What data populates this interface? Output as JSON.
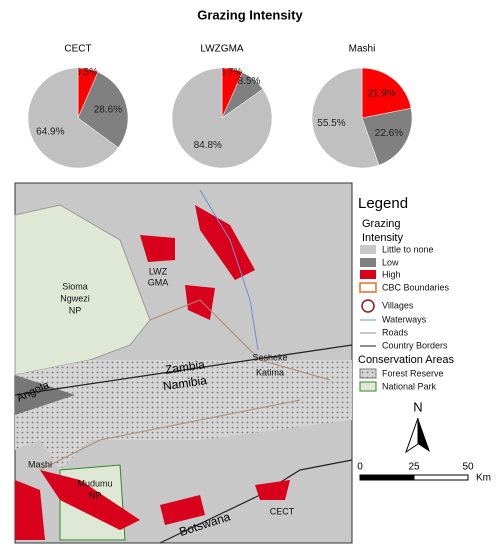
{
  "title": "Grazing Intensity",
  "chart_data": [
    {
      "type": "pie",
      "title": "CECT",
      "values": [
        6.5,
        28.6,
        64.9
      ],
      "value_labels": [
        "6.5%",
        "28.6%",
        "64.9%"
      ],
      "colors": [
        "#ff0000",
        "#808080",
        "#c0c0c0"
      ]
    },
    {
      "type": "pie",
      "title": "LWZGMA",
      "values": [
        6.7,
        8.5,
        84.8
      ],
      "value_labels": [
        "6.7%",
        "8.5%",
        "84.8%"
      ],
      "colors": [
        "#ff0000",
        "#808080",
        "#c0c0c0"
      ]
    },
    {
      "type": "pie",
      "title": "Mashi",
      "values": [
        21.9,
        22.6,
        55.5
      ],
      "value_labels": [
        "21.9%",
        "22.6%",
        "55.5%"
      ],
      "colors": [
        "#ff0000",
        "#808080",
        "#c0c0c0"
      ]
    }
  ],
  "map": {
    "labels": [
      "Sioma",
      "Ngwezi",
      "NP",
      "LWZ",
      "GMA",
      "Sesheke",
      "Katima",
      "Zambia",
      "Namibia",
      "Angola",
      "Mashi",
      "Mudumu",
      "NP",
      "Botswana",
      "CECT"
    ],
    "legend": {
      "title": "Legend",
      "grazing": [
        "Grazing",
        "Intensity"
      ],
      "items": [
        "Little to none",
        "Low",
        "High",
        "CBC Boundaries",
        "Villages",
        "Waterways",
        "Roads",
        "Country Borders"
      ],
      "conservation_title": "Conservation Areas",
      "conservation_items": [
        "Forest Reserve",
        "National Park"
      ]
    },
    "north": "N",
    "scale": {
      "ticks": [
        0,
        25,
        50
      ],
      "unit": "Km"
    }
  }
}
